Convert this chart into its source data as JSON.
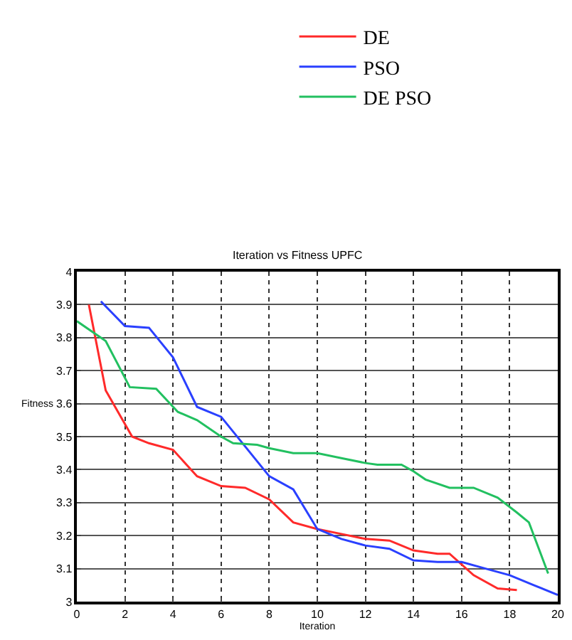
{
  "chart_data": {
    "type": "line",
    "title": "Iteration vs Fitness UPFC",
    "xlabel": "Iteration",
    "ylabel": "Fitness",
    "xlim": [
      0,
      20
    ],
    "xticks": [
      0,
      2,
      4,
      6,
      8,
      10,
      12,
      14,
      16,
      18,
      20
    ],
    "ylim": [
      3,
      4
    ],
    "yticks": [
      3,
      3.1,
      3.2,
      3.3,
      3.4,
      3.5,
      3.6,
      3.7,
      3.8,
      3.9,
      4
    ],
    "grid": true,
    "legend": "top",
    "series": [
      {
        "name": "DE",
        "color": "#ff2a2a",
        "x": [
          0.5,
          1.2,
          2.3,
          3,
          4,
          5,
          6,
          7,
          8,
          9,
          10,
          11,
          12,
          13,
          14,
          15,
          15.5,
          16.5,
          17.5,
          18.3
        ],
        "values": [
          3.9,
          3.64,
          3.5,
          3.48,
          3.46,
          3.38,
          3.35,
          3.345,
          3.31,
          3.24,
          3.22,
          3.205,
          3.19,
          3.185,
          3.155,
          3.145,
          3.145,
          3.08,
          3.04,
          3.035
        ]
      },
      {
        "name": "PSO",
        "color": "#2a40ff",
        "x": [
          1,
          2,
          3,
          4,
          5,
          6,
          7,
          8,
          9,
          10,
          11,
          12,
          13,
          14,
          15,
          16,
          17,
          18,
          19,
          20
        ],
        "values": [
          3.91,
          3.835,
          3.83,
          3.74,
          3.59,
          3.56,
          3.47,
          3.38,
          3.34,
          3.22,
          3.19,
          3.17,
          3.16,
          3.125,
          3.12,
          3.12,
          3.1,
          3.08,
          3.05,
          3.02
        ]
      },
      {
        "name": "DE PSO",
        "color": "#22c060",
        "x": [
          0,
          1.2,
          2.2,
          3.3,
          4.2,
          5,
          6,
          6.5,
          7.5,
          8,
          9,
          10,
          11,
          12,
          12.5,
          13.5,
          14,
          14.5,
          15.5,
          16.5,
          17.5,
          18.3,
          18.8,
          19.6
        ],
        "values": [
          3.85,
          3.79,
          3.65,
          3.645,
          3.575,
          3.55,
          3.5,
          3.48,
          3.475,
          3.465,
          3.45,
          3.45,
          3.435,
          3.42,
          3.415,
          3.415,
          3.395,
          3.37,
          3.345,
          3.345,
          3.315,
          3.27,
          3.24,
          3.085
        ]
      }
    ]
  }
}
